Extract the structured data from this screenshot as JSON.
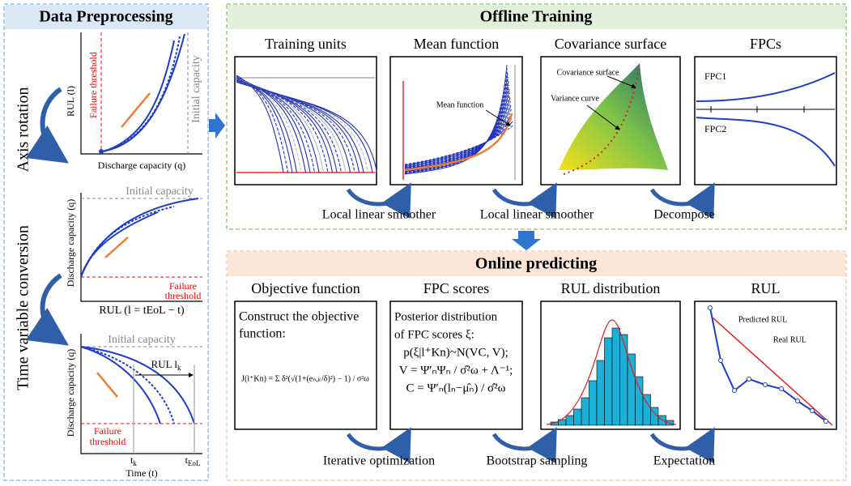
{
  "preprocessing": {
    "title": "Data Preprocessing",
    "steps": [
      "Axis rotation",
      "Time variable conversion"
    ],
    "plot1": {
      "y_label": "RUL (l)",
      "x_label": "Discharge capacity (q)",
      "threshold": "Failure threshold",
      "initial": "Initial capacity"
    },
    "plot2": {
      "y_label": "Discharge capacity (q)",
      "x_label": "RUL (l = tEoL − t)",
      "initial": "Initial capacity",
      "threshold": [
        "Failure",
        "threshold"
      ]
    },
    "plot3": {
      "y_label": "Discharge capacity (q)",
      "x_label": "Time (t)",
      "initial": "Initial capacity",
      "rul": {
        "base": "RUL l",
        "sub": "k"
      },
      "threshold": [
        "Failure",
        "threshold"
      ],
      "t_k": {
        "base": "t",
        "sub": "k"
      },
      "t_eol": {
        "base": "t",
        "sub": "EoL"
      }
    }
  },
  "offline": {
    "title": "Offline Training",
    "panels": [
      {
        "title": "Training units"
      },
      {
        "title": "Mean function",
        "note": "Mean function"
      },
      {
        "title": "Covariance surface",
        "notes": [
          "Covariance surface",
          "Variance curve"
        ]
      },
      {
        "title": "FPCs",
        "notes": [
          "FPC1",
          "FPC2"
        ]
      }
    ],
    "arrows": [
      "Local linear smoother",
      "Local linear smoother",
      "Decompose"
    ]
  },
  "online": {
    "title": "Online predicting",
    "panels": [
      {
        "title": "Objective function",
        "lines": [
          "Construct the objective",
          "function:"
        ],
        "formula": "J(l⁺Kn) = Σ δ²(√(1+(eₙ,ₖ/δ)²) − 1) / σ²ω"
      },
      {
        "title": "FPC scores",
        "lines": [
          "Posterior distribution",
          "of FPC scores ξ:",
          "p(ξ|l⁺Kn)~N(VC, V);",
          "V = Ψ′ₙΨₙ / σ̂²ω + Λ⁻¹;",
          "C = Ψ′ₙ(lₙ−μ̂ₙ) / σ̂²ω"
        ]
      },
      {
        "title": "RUL distribution"
      },
      {
        "title": "RUL",
        "notes": [
          "Predicted RUL",
          "Real RUL"
        ]
      }
    ],
    "arrows": [
      "Iterative optimization",
      "Bootstrap sampling",
      "Expectation"
    ]
  }
}
